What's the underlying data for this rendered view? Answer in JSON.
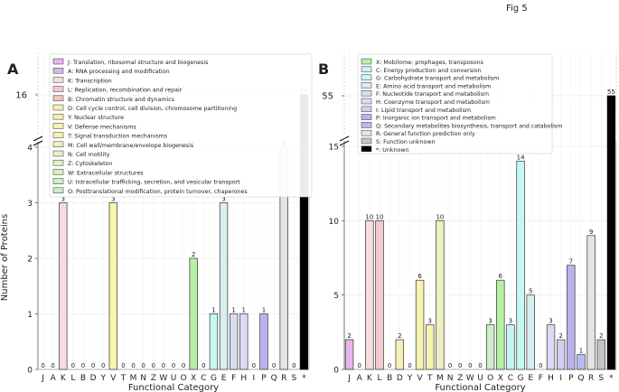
{
  "figure": {
    "title": "Fig 5"
  },
  "colors": {
    "J": "#e8b4ee",
    "A": "#d6b6e8",
    "K": "#f6dce2",
    "L": "#f3c9cf",
    "B": "#f0c2c2",
    "D": "#f4f0b8",
    "Y": "#f3eeb0",
    "V": "#f7f3b0",
    "T": "#f7f3b0",
    "M": "#eef0c4",
    "N": "#e8f0c4",
    "Z": "#dff0c0",
    "W": "#d6f0c0",
    "U": "#d0efc4",
    "O": "#cdeec6",
    "X": "#b6f0a4",
    "C": "#c4f4f4",
    "G": "#c6f8f2",
    "E": "#d8eef0",
    "F": "#d8dcf2",
    "H": "#dcdaf4",
    "I": "#d4cbef",
    "P": "#b9b2ee",
    "Q": "#b4bcee",
    "R": "#e4e4e4",
    "S": "#c4c4c4",
    "*": "#000000"
  },
  "chart_data": [
    {
      "panel": "A",
      "type": "bar",
      "xlabel": "Functional Category",
      "ylabel": "Number of Proteins",
      "categories": [
        "J",
        "A",
        "K",
        "L",
        "B",
        "D",
        "Y",
        "V",
        "T",
        "M",
        "N",
        "Z",
        "W",
        "U",
        "O",
        "X",
        "C",
        "G",
        "E",
        "F",
        "H",
        "I",
        "P",
        "Q",
        "R",
        "S",
        "*"
      ],
      "values": [
        0,
        0,
        3,
        0,
        0,
        0,
        0,
        3,
        0,
        0,
        0,
        0,
        0,
        0,
        0,
        2,
        0,
        1,
        3,
        1,
        1,
        0,
        1,
        0,
        4,
        0,
        16
      ],
      "lower_ylim": [
        0,
        4
      ],
      "lower_ticks": [
        0,
        1,
        2,
        3,
        4
      ],
      "upper_ticks": [
        16
      ],
      "legend": [
        {
          "code": "J",
          "text": "J: Translation, ribosomal structure and biogenesis"
        },
        {
          "code": "A",
          "text": "A: RNA processing and modification"
        },
        {
          "code": "K",
          "text": "K: Transcription"
        },
        {
          "code": "L",
          "text": "L: Replication, recombination and repair"
        },
        {
          "code": "B",
          "text": "B: Chromatin structure and dynamics"
        },
        {
          "code": "D",
          "text": "D: Cell cycle control, cell division, chromosome partitioning"
        },
        {
          "code": "Y",
          "text": "Y: Nuclear structure"
        },
        {
          "code": "V",
          "text": "V: Defense mechanisms"
        },
        {
          "code": "T",
          "text": "T: Signal transduction mechanisms"
        },
        {
          "code": "M",
          "text": "M: Cell wall/membrane/envelope biogenesis"
        },
        {
          "code": "N",
          "text": "N: Cell motility"
        },
        {
          "code": "Z",
          "text": "Z: Cytoskeleton"
        },
        {
          "code": "W",
          "text": "W: Extracellular structures"
        },
        {
          "code": "U",
          "text": "U: Intracellular trafficking, secretion, and vesicular transport"
        },
        {
          "code": "O",
          "text": "O: Posttranslational modification, protein turnover, chaperones"
        }
      ]
    },
    {
      "panel": "B",
      "type": "bar",
      "xlabel": "Functional Category",
      "ylabel": "",
      "categories": [
        "J",
        "A",
        "K",
        "L",
        "B",
        "D",
        "Y",
        "V",
        "T",
        "M",
        "N",
        "Z",
        "W",
        "U",
        "O",
        "X",
        "C",
        "G",
        "E",
        "F",
        "H",
        "I",
        "P",
        "Q",
        "R",
        "S",
        "*"
      ],
      "values": [
        2,
        0,
        10,
        10,
        0,
        2,
        0,
        6,
        3,
        10,
        0,
        0,
        0,
        0,
        3,
        6,
        3,
        14,
        5,
        0,
        3,
        2,
        7,
        1,
        9,
        2,
        55
      ],
      "lower_ylim": [
        0,
        15
      ],
      "lower_ticks": [
        0,
        5,
        10,
        15
      ],
      "upper_ticks": [
        55
      ],
      "legend": [
        {
          "code": "X",
          "text": "X: Mobilome: prophages, transposons"
        },
        {
          "code": "C",
          "text": "C: Energy production and conversion"
        },
        {
          "code": "G",
          "text": "G: Carbohydrate transport and metabolism"
        },
        {
          "code": "E",
          "text": "E: Amino acid transport and metabolism"
        },
        {
          "code": "F",
          "text": "F: Nucleotide transport and metabolism"
        },
        {
          "code": "H",
          "text": "H: Coenzyme transport and metabolism"
        },
        {
          "code": "I",
          "text": "I: Lipid transport and metabolism"
        },
        {
          "code": "P",
          "text": "P: Inorganic ion transport and metabolism"
        },
        {
          "code": "Q",
          "text": "Q: Secondary metabolites biosynthesis, transport and catabolism"
        },
        {
          "code": "R",
          "text": "R: General function prediction only"
        },
        {
          "code": "S",
          "text": "S: Function unknown"
        },
        {
          "code": "*",
          "text": "*: Unknown"
        }
      ]
    }
  ]
}
